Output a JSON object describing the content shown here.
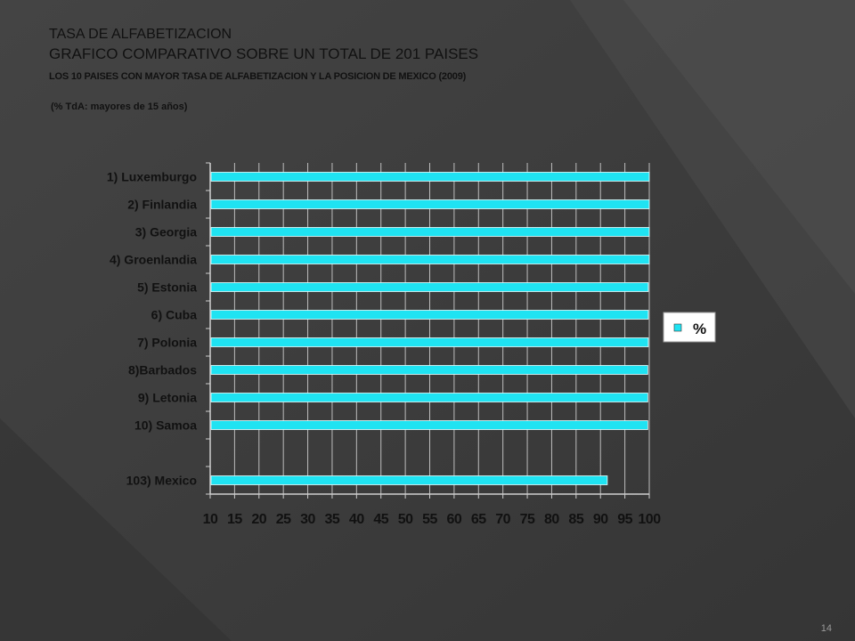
{
  "slide": {
    "title_line1": "TASA DE ALFABETIZACION",
    "title_line2": "GRAFICO COMPARATIVO SOBRE UN TOTAL DE 201 PAISES",
    "title_line3": "LOS 10 PAISES CON MAYOR TASA DE ALFABETIZACION Y LA POSICION DE MEXICO (2009)",
    "note": "(% TdA: mayores de 15 años)",
    "slide_number": "14"
  },
  "colors": {
    "background": "#3c3c3c",
    "bar": "#1fe3f2",
    "text": "#111111",
    "legend_box": "#ffffff"
  },
  "chart_data": {
    "type": "bar",
    "orientation": "horizontal",
    "title": "",
    "xlabel": "",
    "ylabel": "",
    "xlim": [
      10,
      100
    ],
    "x_ticks": [
      10,
      15,
      20,
      25,
      30,
      35,
      40,
      45,
      50,
      55,
      60,
      65,
      70,
      75,
      80,
      85,
      90,
      95,
      100
    ],
    "grid": "vertical",
    "legend_position": "right",
    "categories": [
      "1) Luxemburgo",
      "2) Finlandia",
      "3) Georgia",
      "4) Groenlandia",
      "5) Estonia",
      "6) Cuba",
      "7) Polonia",
      "8)Barbados",
      "9) Letonia",
      "10) Samoa",
      "",
      "103) Mexico"
    ],
    "series": [
      {
        "name": "%",
        "values": [
          100,
          100,
          100,
          100,
          99.8,
          99.8,
          99.8,
          99.7,
          99.7,
          99.7,
          null,
          91.4
        ]
      }
    ]
  }
}
